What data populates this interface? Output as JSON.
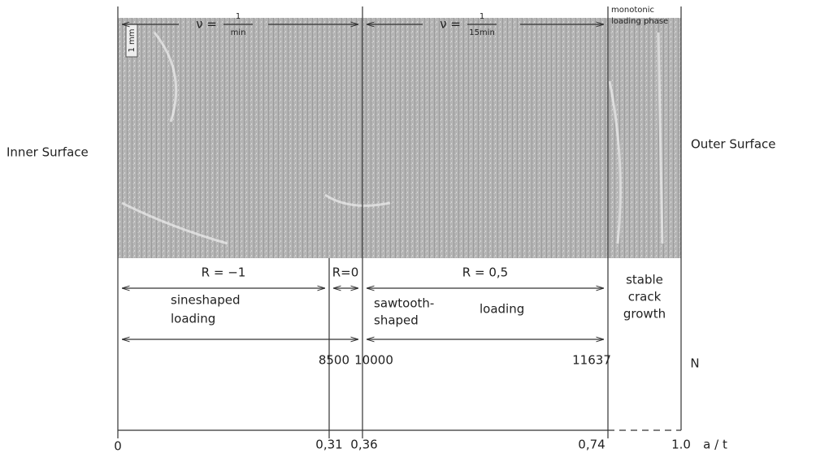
{
  "top": {
    "segments": [
      {
        "lhs": "ν =",
        "num": "1",
        "den": "min"
      },
      {
        "lhs": "ν =",
        "num": "1",
        "den": "15min"
      }
    ],
    "phase": [
      "monotonic",
      "loading phase"
    ]
  },
  "image": {
    "scale": "1 mm",
    "left": "Inner Surface",
    "right": "Outer Surface"
  },
  "ratios": [
    "R = −1",
    "R=0",
    "R = 0,5"
  ],
  "stable": [
    "stable",
    "crack",
    "growth"
  ],
  "loading": {
    "sine": [
      "sineshaped",
      "loading"
    ],
    "saw": [
      "sawtooth-",
      "shaped"
    ],
    "saw_word": "loading"
  },
  "cycles": {
    "labels": [
      "8500",
      "10000",
      "11637"
    ],
    "axis": "N"
  },
  "depth": {
    "labels": [
      "0",
      "0,31",
      "0,36",
      "0,74",
      "1.0"
    ],
    "axis": "a / t"
  }
}
